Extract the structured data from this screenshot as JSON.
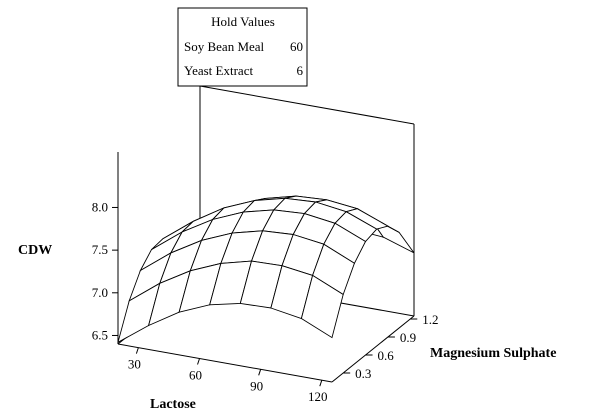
{
  "chart_data": {
    "type": "surface",
    "title": "",
    "hold_values": {
      "title": "Hold Values",
      "items": [
        {
          "name": "Soy Bean Meal",
          "value": "60"
        },
        {
          "name": "Yeast Extract",
          "value": "6"
        }
      ]
    },
    "x_axis": {
      "label": "Lactose",
      "range": [
        20,
        125
      ],
      "ticks": [
        "30",
        "60",
        "90",
        "120"
      ]
    },
    "y_axis": {
      "label": "Magnesium Sulphate",
      "range": [
        0.15,
        1.25
      ],
      "ticks": [
        "0.3",
        "0.6",
        "0.9",
        "1.2"
      ]
    },
    "z_axis": {
      "label": "CDW",
      "range": [
        6.4,
        8.1
      ],
      "ticks": [
        "6.5",
        "7.0",
        "7.5",
        "8.0"
      ]
    },
    "surface": {
      "x": [
        20,
        35,
        50,
        65,
        80,
        95,
        110,
        125
      ],
      "y": [
        0.15,
        0.3,
        0.45,
        0.6,
        0.75,
        0.9,
        1.05,
        1.25
      ],
      "z": [
        [
          6.42,
          6.68,
          6.9,
          7.05,
          7.13,
          7.14,
          7.08,
          6.92
        ],
        [
          6.8,
          7.07,
          7.28,
          7.43,
          7.52,
          7.53,
          7.48,
          7.32
        ],
        [
          7.05,
          7.32,
          7.53,
          7.68,
          7.77,
          7.79,
          7.74,
          7.58
        ],
        [
          7.19,
          7.46,
          7.67,
          7.82,
          7.91,
          7.93,
          7.88,
          7.73
        ],
        [
          7.21,
          7.48,
          7.7,
          7.85,
          7.94,
          7.96,
          7.91,
          7.77
        ],
        [
          7.12,
          7.39,
          7.61,
          7.77,
          7.86,
          7.88,
          7.84,
          7.7
        ],
        [
          6.9,
          7.18,
          7.4,
          7.56,
          7.66,
          7.69,
          7.65,
          7.52
        ],
        [
          6.47,
          6.75,
          6.98,
          7.15,
          7.25,
          7.29,
          7.26,
          7.14
        ]
      ]
    }
  }
}
